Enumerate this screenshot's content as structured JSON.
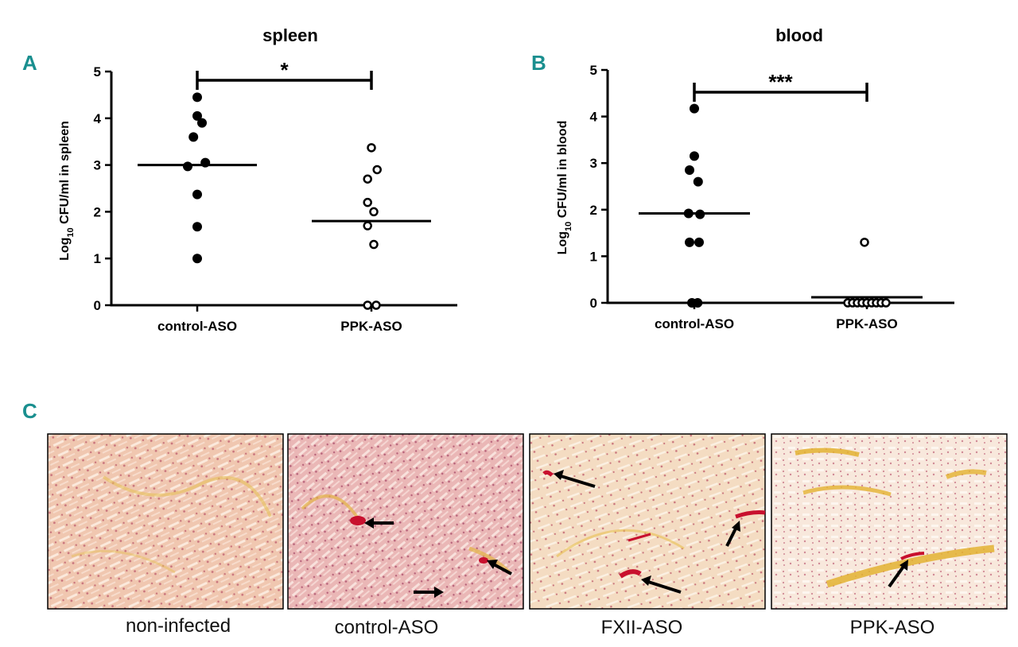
{
  "panel_letters": [
    "A",
    "B",
    "C"
  ],
  "chart_data": [
    {
      "type": "scatter",
      "panel": "A",
      "title": "spleen",
      "ylabel_main": "Log",
      "ylabel_sub": "10",
      "ylabel_rest": " CFU/ml in spleen",
      "ylim": [
        0,
        5
      ],
      "yticks": [
        "0",
        "1",
        "2",
        "3",
        "4",
        "5"
      ],
      "categories": [
        "control-ASO",
        "PPK-ASO"
      ],
      "series": [
        {
          "name": "control-ASO",
          "marker": "filled",
          "median": 3.0,
          "points": [
            {
              "x": 0.0,
              "y": 4.45
            },
            {
              "x": 0.0,
              "y": 4.05
            },
            {
              "x": 0.1,
              "y": 3.9
            },
            {
              "x": -0.08,
              "y": 3.6
            },
            {
              "x": -0.2,
              "y": 2.97
            },
            {
              "x": 0.17,
              "y": 3.05
            },
            {
              "x": 0.0,
              "y": 2.37
            },
            {
              "x": 0.0,
              "y": 1.68
            },
            {
              "x": 0.0,
              "y": 1.0
            }
          ]
        },
        {
          "name": "PPK-ASO",
          "marker": "open",
          "median": 1.8,
          "points": [
            {
              "x": 0.0,
              "y": 3.37
            },
            {
              "x": -0.08,
              "y": 2.7
            },
            {
              "x": 0.12,
              "y": 2.9
            },
            {
              "x": -0.08,
              "y": 2.2
            },
            {
              "x": 0.05,
              "y": 2.0
            },
            {
              "x": -0.08,
              "y": 1.7
            },
            {
              "x": 0.05,
              "y": 1.3
            },
            {
              "x": -0.08,
              "y": 0.0
            },
            {
              "x": 0.1,
              "y": 0.0
            }
          ]
        }
      ],
      "significance": "*"
    },
    {
      "type": "scatter",
      "panel": "B",
      "title": "blood",
      "ylabel_main": "Log",
      "ylabel_sub": "10",
      "ylabel_rest": " CFU/ml in blood",
      "ylim": [
        0,
        5
      ],
      "yticks": [
        "0",
        "1",
        "2",
        "3",
        "4",
        "5"
      ],
      "categories": [
        "control-ASO",
        "PPK-ASO"
      ],
      "series": [
        {
          "name": "control-ASO",
          "marker": "filled",
          "median": 1.92,
          "points": [
            {
              "x": 0.0,
              "y": 4.17
            },
            {
              "x": 0.0,
              "y": 3.15
            },
            {
              "x": -0.1,
              "y": 2.85
            },
            {
              "x": 0.08,
              "y": 2.6
            },
            {
              "x": -0.12,
              "y": 1.92
            },
            {
              "x": 0.12,
              "y": 1.9
            },
            {
              "x": -0.1,
              "y": 1.3
            },
            {
              "x": 0.1,
              "y": 1.3
            },
            {
              "x": -0.05,
              "y": 0.0
            },
            {
              "x": 0.07,
              "y": 0.0
            }
          ]
        },
        {
          "name": "PPK-ASO",
          "marker": "open",
          "median": 0.12,
          "points": [
            {
              "x": -0.05,
              "y": 1.3
            },
            {
              "x": -0.4,
              "y": 0.0
            },
            {
              "x": -0.3,
              "y": 0.0
            },
            {
              "x": -0.2,
              "y": 0.0
            },
            {
              "x": -0.1,
              "y": 0.0
            },
            {
              "x": 0.0,
              "y": 0.0
            },
            {
              "x": 0.1,
              "y": 0.0
            },
            {
              "x": 0.2,
              "y": 0.0
            },
            {
              "x": 0.3,
              "y": 0.0
            },
            {
              "x": 0.4,
              "y": 0.0
            }
          ]
        }
      ],
      "significance": "***"
    }
  ],
  "histology": {
    "captions": [
      "non-infected",
      "control-ASO",
      "FXII-ASO",
      "PPK-ASO"
    ],
    "arrow_counts": [
      0,
      3,
      3,
      1
    ]
  },
  "colors": {
    "accent_letter": "#1a8f8f",
    "tissue_base": "#f2ccb6",
    "tissue_pink": "#e8a9a8",
    "tissue_yellow": "#e9c24a",
    "thrombus_red": "#c8102e"
  }
}
